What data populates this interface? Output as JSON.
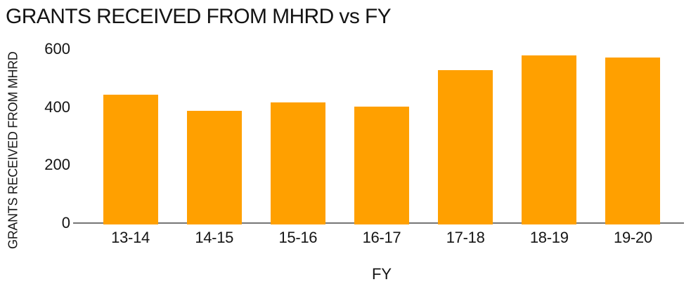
{
  "chart_data": {
    "type": "bar",
    "title": "GRANTS RECEIVED FROM MHRD vs FY",
    "xlabel": "FY",
    "ylabel": "GRANTS RECEIVED FROM MHRD",
    "categories": [
      "13-14",
      "14-15",
      "15-16",
      "16-17",
      "17-18",
      "18-19",
      "19-20"
    ],
    "values": [
      447,
      392,
      421,
      406,
      532,
      582,
      577
    ],
    "yticks": [
      0,
      200,
      400,
      600
    ],
    "ylim": [
      0,
      600
    ],
    "grid": false,
    "legend": false,
    "colors": {
      "bar": "#FFA000",
      "axis_line": "#757575",
      "text": "#141414",
      "background": "#FFFFFF"
    }
  }
}
